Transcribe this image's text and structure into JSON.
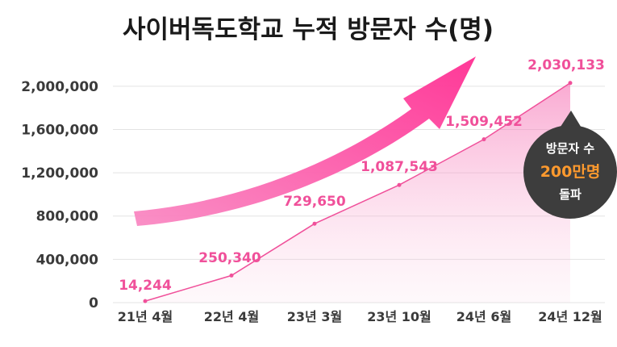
{
  "chart_data": {
    "type": "area",
    "title": "사이버독도학교 누적 방문자 수(명)",
    "categories": [
      "21년 4월",
      "22년 4월",
      "23년 3월",
      "23년 10월",
      "24년 6월",
      "24년 12월"
    ],
    "series": [
      {
        "values": [
          14244,
          250340,
          729650,
          1087543,
          1509452,
          2030133
        ],
        "labels": [
          "14,244",
          "250,340",
          "729,650",
          "1,087,543",
          "1,509,452",
          "2,030,133"
        ]
      }
    ],
    "ylim": [
      0,
      2200000
    ],
    "yticks": [
      0,
      400000,
      800000,
      1200000,
      1600000,
      2000000
    ],
    "ytick_labels": [
      "0",
      "400,000",
      "800,000",
      "1,200,000",
      "1,600,000",
      "2,000,000"
    ],
    "grid": true,
    "line_color": "#f0509a",
    "label_color": "#f0509a",
    "annotation": {
      "line1": "방문자 수",
      "line2": "200만명",
      "line3": "돌파",
      "bg_color": "#3d3d3d",
      "highlight_color": "#ff9a2e"
    },
    "arrow_color": "#ff3f9a"
  }
}
